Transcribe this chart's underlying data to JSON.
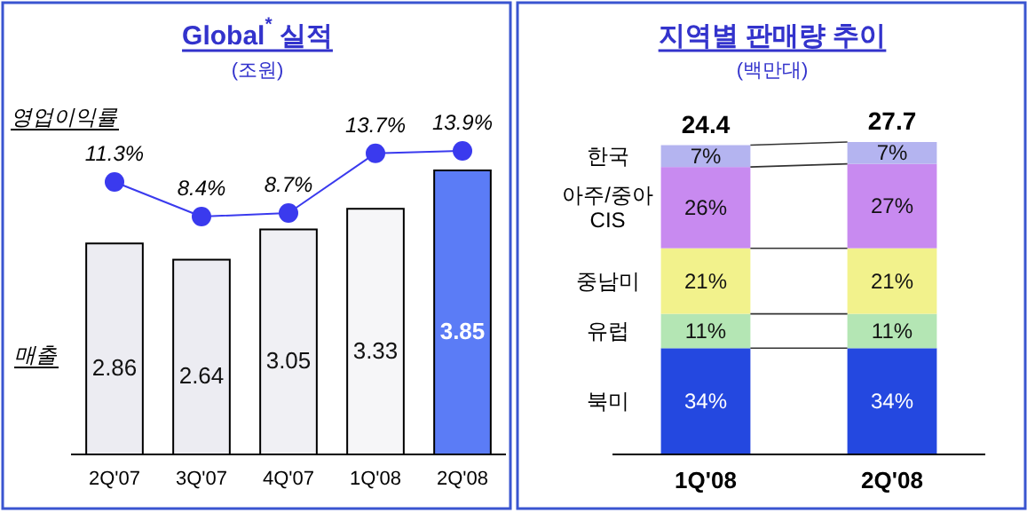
{
  "chart_data": [
    {
      "type": "bar",
      "title": "Global$^{*}$ 실적",
      "subtitle": "(조원)",
      "ylabel": "매출",
      "y2label": "영업이익률",
      "categories": [
        "2Q'07",
        "3Q'07",
        "4Q'07",
        "1Q'08",
        "2Q'08"
      ],
      "series": [
        {
          "type": "bar",
          "colors": [
            "#ececf2",
            "#ececf2",
            "#f0f0f4",
            "#f6f6f8",
            "#5b7cf6"
          ],
          "values": [
            2.86,
            2.64,
            3.05,
            3.33,
            3.85
          ],
          "value_labels": [
            "2.86",
            "2.64",
            "3.05",
            "3.33",
            "3.85"
          ]
        },
        {
          "type": "line",
          "axis": "y2",
          "color": "#3a3aee",
          "marker": "circle",
          "values": [
            11.3,
            8.4,
            8.7,
            13.7,
            13.9
          ],
          "value_labels": [
            "11.3%",
            "8.4%",
            "8.7%",
            "13.7%",
            "13.9%"
          ]
        }
      ]
    },
    {
      "type": "bar",
      "stacked": true,
      "title": "지역별 판매량 추이",
      "subtitle": "(백만대)",
      "categories": [
        "1Q'08",
        "2Q'08"
      ],
      "annotations": [
        "24.4",
        "27.7"
      ],
      "series": [
        {
          "name": "북미",
          "color": "#2448e0",
          "values": [
            34,
            34
          ],
          "value_labels": [
            "34%",
            "34%"
          ]
        },
        {
          "name": "유럽",
          "color": "#b4e6b4",
          "values": [
            11,
            11
          ],
          "value_labels": [
            "11%",
            "11%"
          ]
        },
        {
          "name": "중남미",
          "color": "#f2f28c",
          "values": [
            21,
            21
          ],
          "value_labels": [
            "21%",
            "21%"
          ]
        },
        {
          "name": "아주/중아\nCIS",
          "color": "#c88af0",
          "values": [
            26,
            27
          ],
          "value_labels": [
            "26%",
            "27%"
          ]
        },
        {
          "name": "한국",
          "color": "#b4b4f0",
          "values": [
            7,
            7
          ],
          "value_labels": [
            "7%",
            "7%"
          ]
        }
      ]
    }
  ]
}
